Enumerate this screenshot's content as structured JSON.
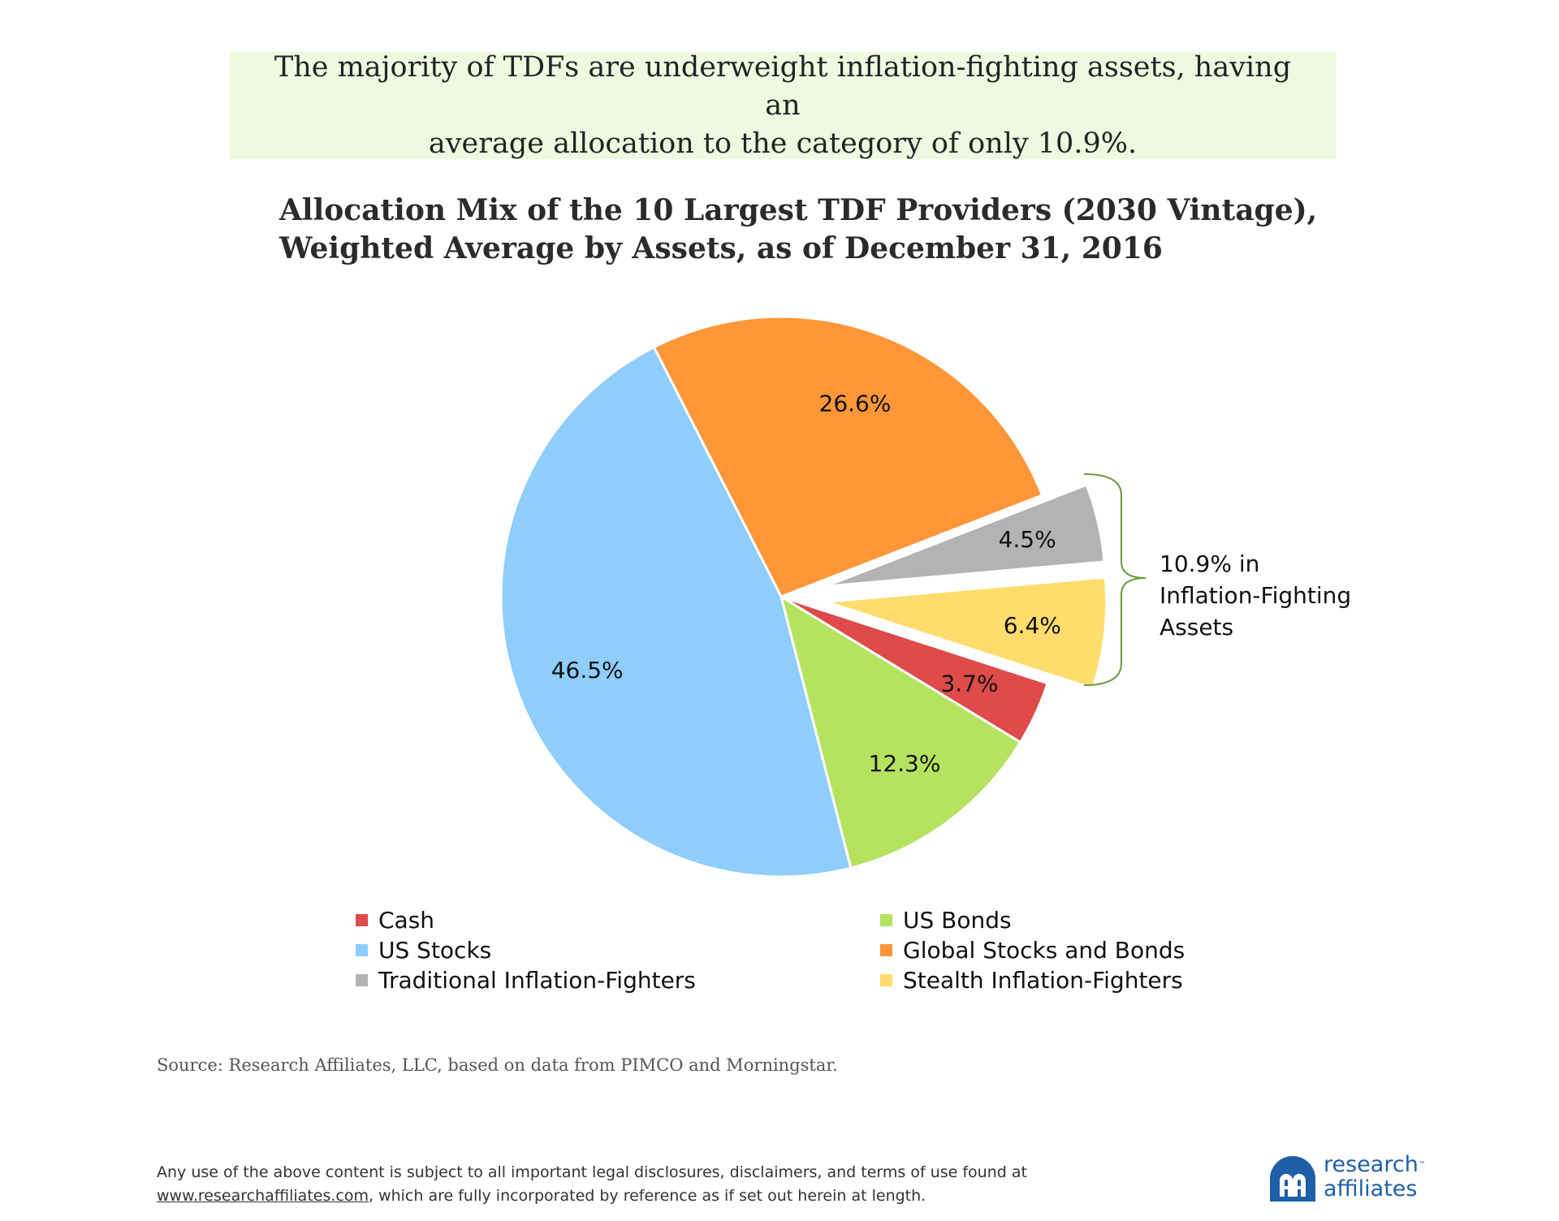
{
  "headline": {
    "line1": "The majority of TDFs are underweight inflation-fighting assets, having an",
    "line2": "average allocation to the category of only 10.9%."
  },
  "chart_data": {
    "type": "pie",
    "title_line1": "Allocation Mix of the 10 Largest TDF Providers (2030 Vintage),",
    "title_line2": "Weighted Average by Assets, as of December 31, 2016",
    "slices": [
      {
        "name": "Global Stocks and Bonds",
        "value": 26.6,
        "label": "26.6%",
        "color": "#ff9638",
        "exploded": false
      },
      {
        "name": "Traditional Inflation-Fighters",
        "value": 4.5,
        "label": "4.5%",
        "color": "#b3b3b3",
        "exploded": true
      },
      {
        "name": "Stealth Inflation-Fighters",
        "value": 6.4,
        "label": "6.4%",
        "color": "#ffdc6b",
        "exploded": true
      },
      {
        "name": "Cash",
        "value": 3.7,
        "label": "3.7%",
        "color": "#df4a4a",
        "exploded": false
      },
      {
        "name": "US Bonds",
        "value": 12.3,
        "label": "12.3%",
        "color": "#b5e35f",
        "exploded": false
      },
      {
        "name": "US Stocks",
        "value": 46.5,
        "label": "46.5%",
        "color": "#8ecdfc",
        "exploded": false
      }
    ],
    "annotation": {
      "line1": "10.9% in",
      "line2": "Inflation-Fighting",
      "line3": "Assets",
      "bracket_color": "#6a9a3a"
    },
    "legend": [
      {
        "label": "Cash",
        "color": "#df4a4a"
      },
      {
        "label": "US Bonds",
        "color": "#b5e35f"
      },
      {
        "label": "US Stocks",
        "color": "#8ecdfc"
      },
      {
        "label": "Global Stocks and Bonds",
        "color": "#ff9638"
      },
      {
        "label": "Traditional Inflation-Fighters",
        "color": "#b3b3b3"
      },
      {
        "label": "Stealth Inflation-Fighters",
        "color": "#ffdc6b"
      }
    ]
  },
  "source": "Source:  Research Affiliates, LLC, based on data from PIMCO and Morningstar.",
  "disclaimer": {
    "line1": "Any use of the above content is subject to all important legal disclosures, disclaimers, and terms of use found at",
    "link": "www.researchaffiliates.com",
    "line2_rest": ", which are fully incorporated by reference as if set out herein at length."
  },
  "logo": {
    "line1": "research",
    "tm": "™",
    "line2": "affiliates",
    "color": "#1f5fa8"
  }
}
